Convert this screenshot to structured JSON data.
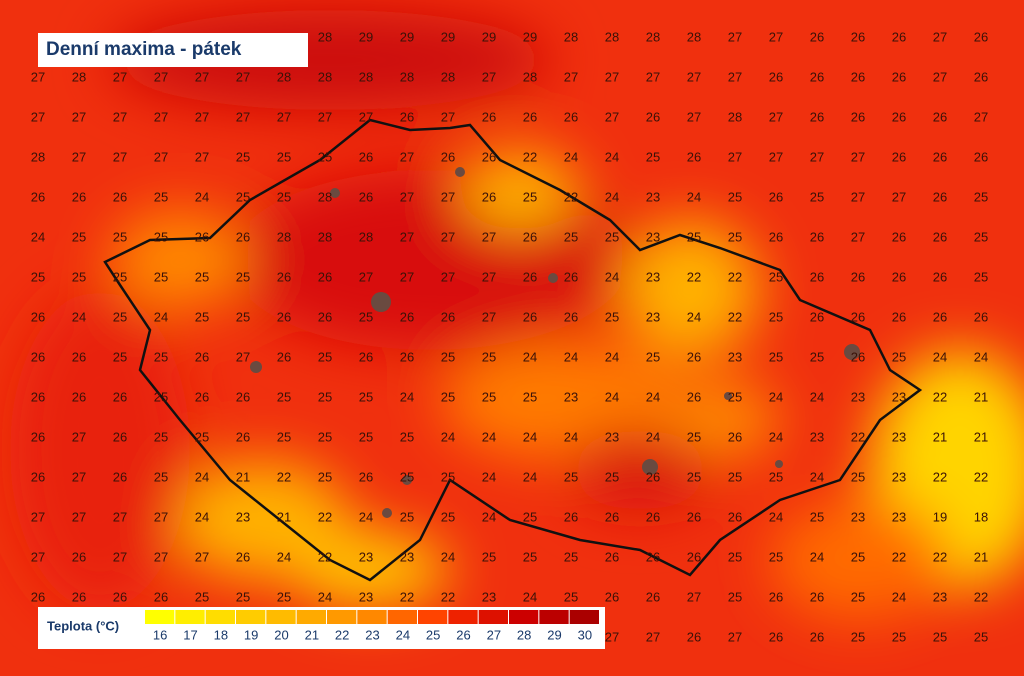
{
  "title": "Denní maxima - pátek",
  "legend": {
    "title": "Teplota (°C)",
    "items": [
      {
        "value": 16,
        "color": "#ffff00"
      },
      {
        "value": 17,
        "color": "#ffee00"
      },
      {
        "value": 18,
        "color": "#ffdd00"
      },
      {
        "value": 19,
        "color": "#ffcc00"
      },
      {
        "value": 20,
        "color": "#ffbb00"
      },
      {
        "value": 21,
        "color": "#ffaa00"
      },
      {
        "value": 22,
        "color": "#ff9900"
      },
      {
        "value": 23,
        "color": "#ff8800"
      },
      {
        "value": 24,
        "color": "#ff6600"
      },
      {
        "value": 25,
        "color": "#ff4400"
      },
      {
        "value": 26,
        "color": "#ee2200"
      },
      {
        "value": 27,
        "color": "#dd1100"
      },
      {
        "value": 28,
        "color": "#cc0000"
      },
      {
        "value": 29,
        "color": "#bb0000"
      },
      {
        "value": 30,
        "color": "#aa0000"
      }
    ]
  },
  "temperature_grid": [
    [
      null,
      null,
      null,
      null,
      null,
      null,
      null,
      28,
      29,
      29,
      29,
      29,
      29,
      28,
      28,
      28,
      28,
      27,
      27,
      26,
      26,
      26,
      27,
      26
    ],
    [
      27,
      28,
      27,
      27,
      27,
      27,
      28,
      28,
      28,
      28,
      28,
      27,
      28,
      27,
      27,
      27,
      27,
      27,
      26,
      26,
      26,
      26,
      27,
      26
    ],
    [
      27,
      27,
      27,
      27,
      27,
      27,
      27,
      27,
      27,
      26,
      27,
      26,
      26,
      26,
      27,
      26,
      27,
      28,
      27,
      26,
      26,
      26,
      26,
      27
    ],
    [
      28,
      27,
      27,
      27,
      27,
      25,
      25,
      25,
      26,
      27,
      26,
      26,
      22,
      24,
      24,
      25,
      26,
      27,
      27,
      27,
      27,
      26,
      26,
      26
    ],
    [
      26,
      26,
      26,
      25,
      24,
      25,
      25,
      28,
      26,
      27,
      27,
      26,
      25,
      22,
      24,
      23,
      24,
      25,
      26,
      25,
      27,
      27,
      26,
      25
    ],
    [
      24,
      25,
      25,
      25,
      26,
      26,
      28,
      28,
      28,
      27,
      27,
      27,
      26,
      25,
      25,
      23,
      25,
      25,
      26,
      26,
      27,
      26,
      26,
      25
    ],
    [
      25,
      25,
      25,
      25,
      25,
      25,
      26,
      26,
      27,
      27,
      27,
      27,
      26,
      26,
      24,
      23,
      22,
      22,
      25,
      26,
      26,
      26,
      26,
      25
    ],
    [
      26,
      24,
      25,
      24,
      25,
      25,
      26,
      26,
      25,
      26,
      26,
      27,
      26,
      26,
      25,
      23,
      24,
      22,
      25,
      26,
      26,
      26,
      26,
      26
    ],
    [
      26,
      26,
      25,
      25,
      26,
      27,
      26,
      25,
      26,
      26,
      25,
      25,
      24,
      24,
      24,
      25,
      26,
      23,
      25,
      25,
      26,
      25,
      24,
      24
    ],
    [
      26,
      26,
      26,
      25,
      26,
      26,
      25,
      25,
      25,
      24,
      25,
      25,
      25,
      23,
      24,
      24,
      26,
      25,
      24,
      24,
      23,
      23,
      22,
      21
    ],
    [
      26,
      27,
      26,
      25,
      25,
      26,
      25,
      25,
      25,
      25,
      24,
      24,
      24,
      24,
      23,
      24,
      25,
      26,
      24,
      23,
      22,
      23,
      21,
      21
    ],
    [
      26,
      27,
      26,
      25,
      24,
      21,
      22,
      25,
      26,
      25,
      25,
      24,
      24,
      25,
      25,
      26,
      25,
      25,
      25,
      24,
      25,
      23,
      22,
      22
    ],
    [
      27,
      27,
      27,
      27,
      24,
      23,
      21,
      22,
      24,
      25,
      25,
      24,
      25,
      26,
      26,
      26,
      26,
      26,
      24,
      25,
      23,
      23,
      19,
      18
    ],
    [
      27,
      26,
      27,
      27,
      27,
      26,
      24,
      22,
      23,
      23,
      24,
      25,
      25,
      25,
      26,
      26,
      26,
      25,
      25,
      24,
      25,
      22,
      22,
      21
    ],
    [
      26,
      26,
      26,
      26,
      25,
      25,
      25,
      24,
      23,
      22,
      22,
      23,
      24,
      25,
      26,
      26,
      27,
      25,
      26,
      26,
      25,
      24,
      23,
      22
    ],
    [
      null,
      null,
      null,
      null,
      null,
      null,
      null,
      null,
      null,
      null,
      null,
      null,
      null,
      null,
      27,
      27,
      26,
      27,
      26,
      26,
      25,
      25,
      25,
      25
    ]
  ]
}
